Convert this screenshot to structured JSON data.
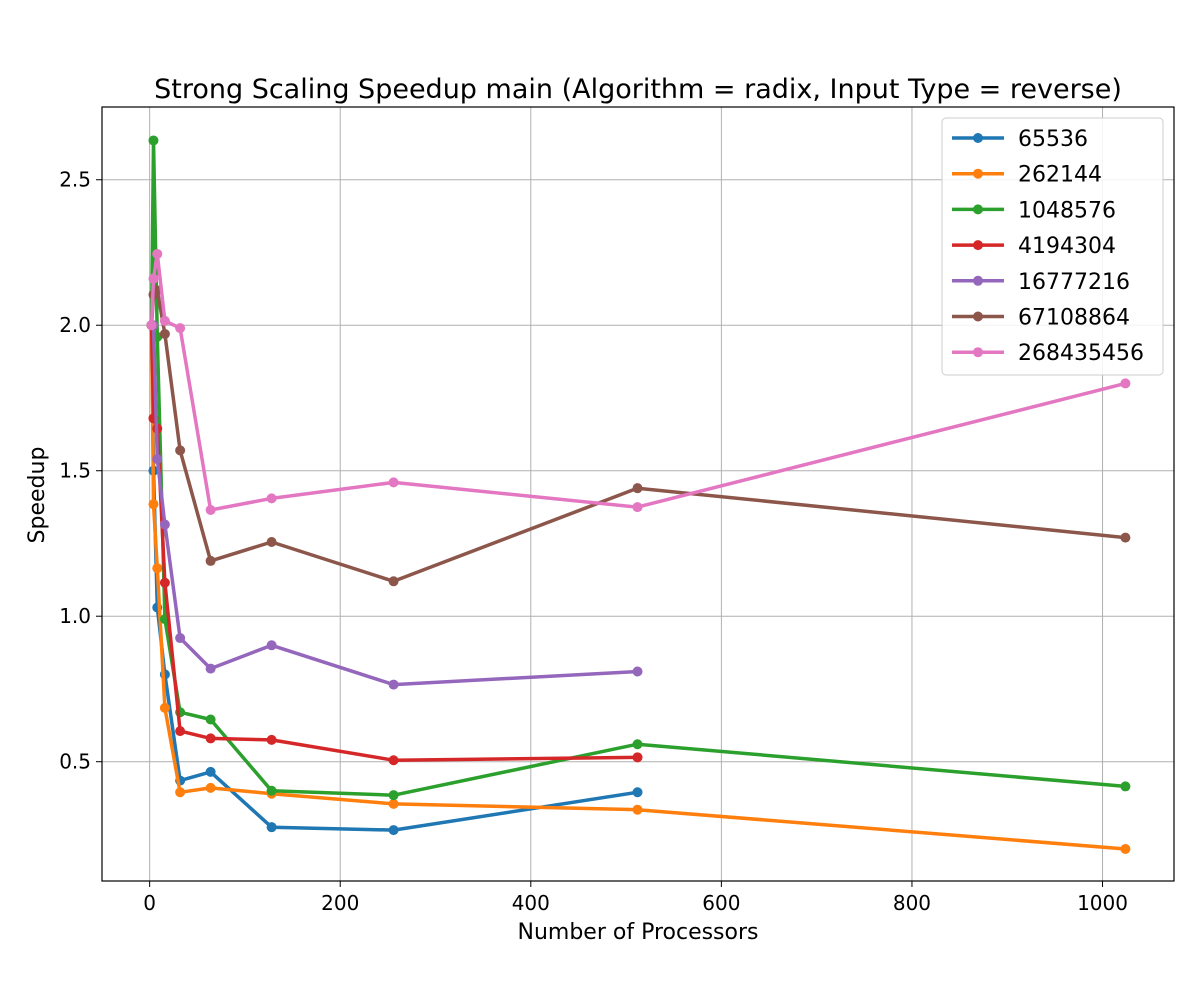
{
  "chart_data": {
    "type": "line",
    "title": "Strong Scaling Speedup main (Algorithm = radix, Input Type = reverse)",
    "xlabel": "Number of Processors",
    "ylabel": "Speedup",
    "xlim": [
      -50,
      1075
    ],
    "ylim": [
      0.09,
      2.75
    ],
    "xticks": [
      0,
      200,
      400,
      600,
      800,
      1000
    ],
    "yticks": [
      0.5,
      1.0,
      1.5,
      2.0,
      2.5
    ],
    "xtick_labels": [
      "0",
      "200",
      "400",
      "600",
      "800",
      "1000"
    ],
    "ytick_labels": [
      "0.5",
      "1.0",
      "1.5",
      "2.0",
      "2.5"
    ],
    "grid": true,
    "legend_position": "top-right",
    "series": [
      {
        "name": "65536",
        "color": "#1f77b4",
        "x": [
          2,
          4,
          8,
          16,
          32,
          64,
          128,
          256,
          512
        ],
        "y": [
          2.0,
          1.5,
          1.03,
          0.8,
          0.435,
          0.465,
          0.275,
          0.265,
          0.395
        ]
      },
      {
        "name": "262144",
        "color": "#ff7f0e",
        "x": [
          2,
          4,
          8,
          16,
          32,
          64,
          128,
          256,
          512,
          1024
        ],
        "y": [
          2.0,
          1.385,
          1.165,
          0.685,
          0.395,
          0.41,
          0.39,
          0.355,
          0.335,
          0.2
        ]
      },
      {
        "name": "1048576",
        "color": "#2ca02c",
        "x": [
          2,
          4,
          8,
          16,
          32,
          64,
          128,
          256,
          512,
          1024
        ],
        "y": [
          2.0,
          2.635,
          1.96,
          0.99,
          0.67,
          0.645,
          0.4,
          0.385,
          0.56,
          0.415
        ]
      },
      {
        "name": "4194304",
        "color": "#d62728",
        "x": [
          2,
          4,
          8,
          16,
          32,
          64,
          128,
          256,
          512
        ],
        "y": [
          2.0,
          1.68,
          1.645,
          1.115,
          0.605,
          0.58,
          0.575,
          0.505,
          0.515
        ]
      },
      {
        "name": "16777216",
        "color": "#9467bd",
        "x": [
          2,
          4,
          8,
          16,
          32,
          64,
          128,
          256,
          512
        ],
        "y": [
          2.0,
          2.0,
          1.54,
          1.315,
          0.925,
          0.82,
          0.9,
          0.765,
          0.81
        ]
      },
      {
        "name": "67108864",
        "color": "#8c564b",
        "x": [
          2,
          4,
          8,
          16,
          32,
          64,
          128,
          256,
          512,
          1024
        ],
        "y": [
          2.0,
          2.105,
          2.12,
          1.97,
          1.57,
          1.19,
          1.255,
          1.12,
          1.44,
          1.27
        ]
      },
      {
        "name": "268435456",
        "color": "#e377c2",
        "x": [
          2,
          4,
          8,
          16,
          32,
          64,
          128,
          256,
          512,
          1024
        ],
        "y": [
          2.0,
          2.16,
          2.245,
          2.015,
          1.99,
          1.365,
          1.405,
          1.46,
          1.375,
          1.8
        ]
      }
    ]
  }
}
